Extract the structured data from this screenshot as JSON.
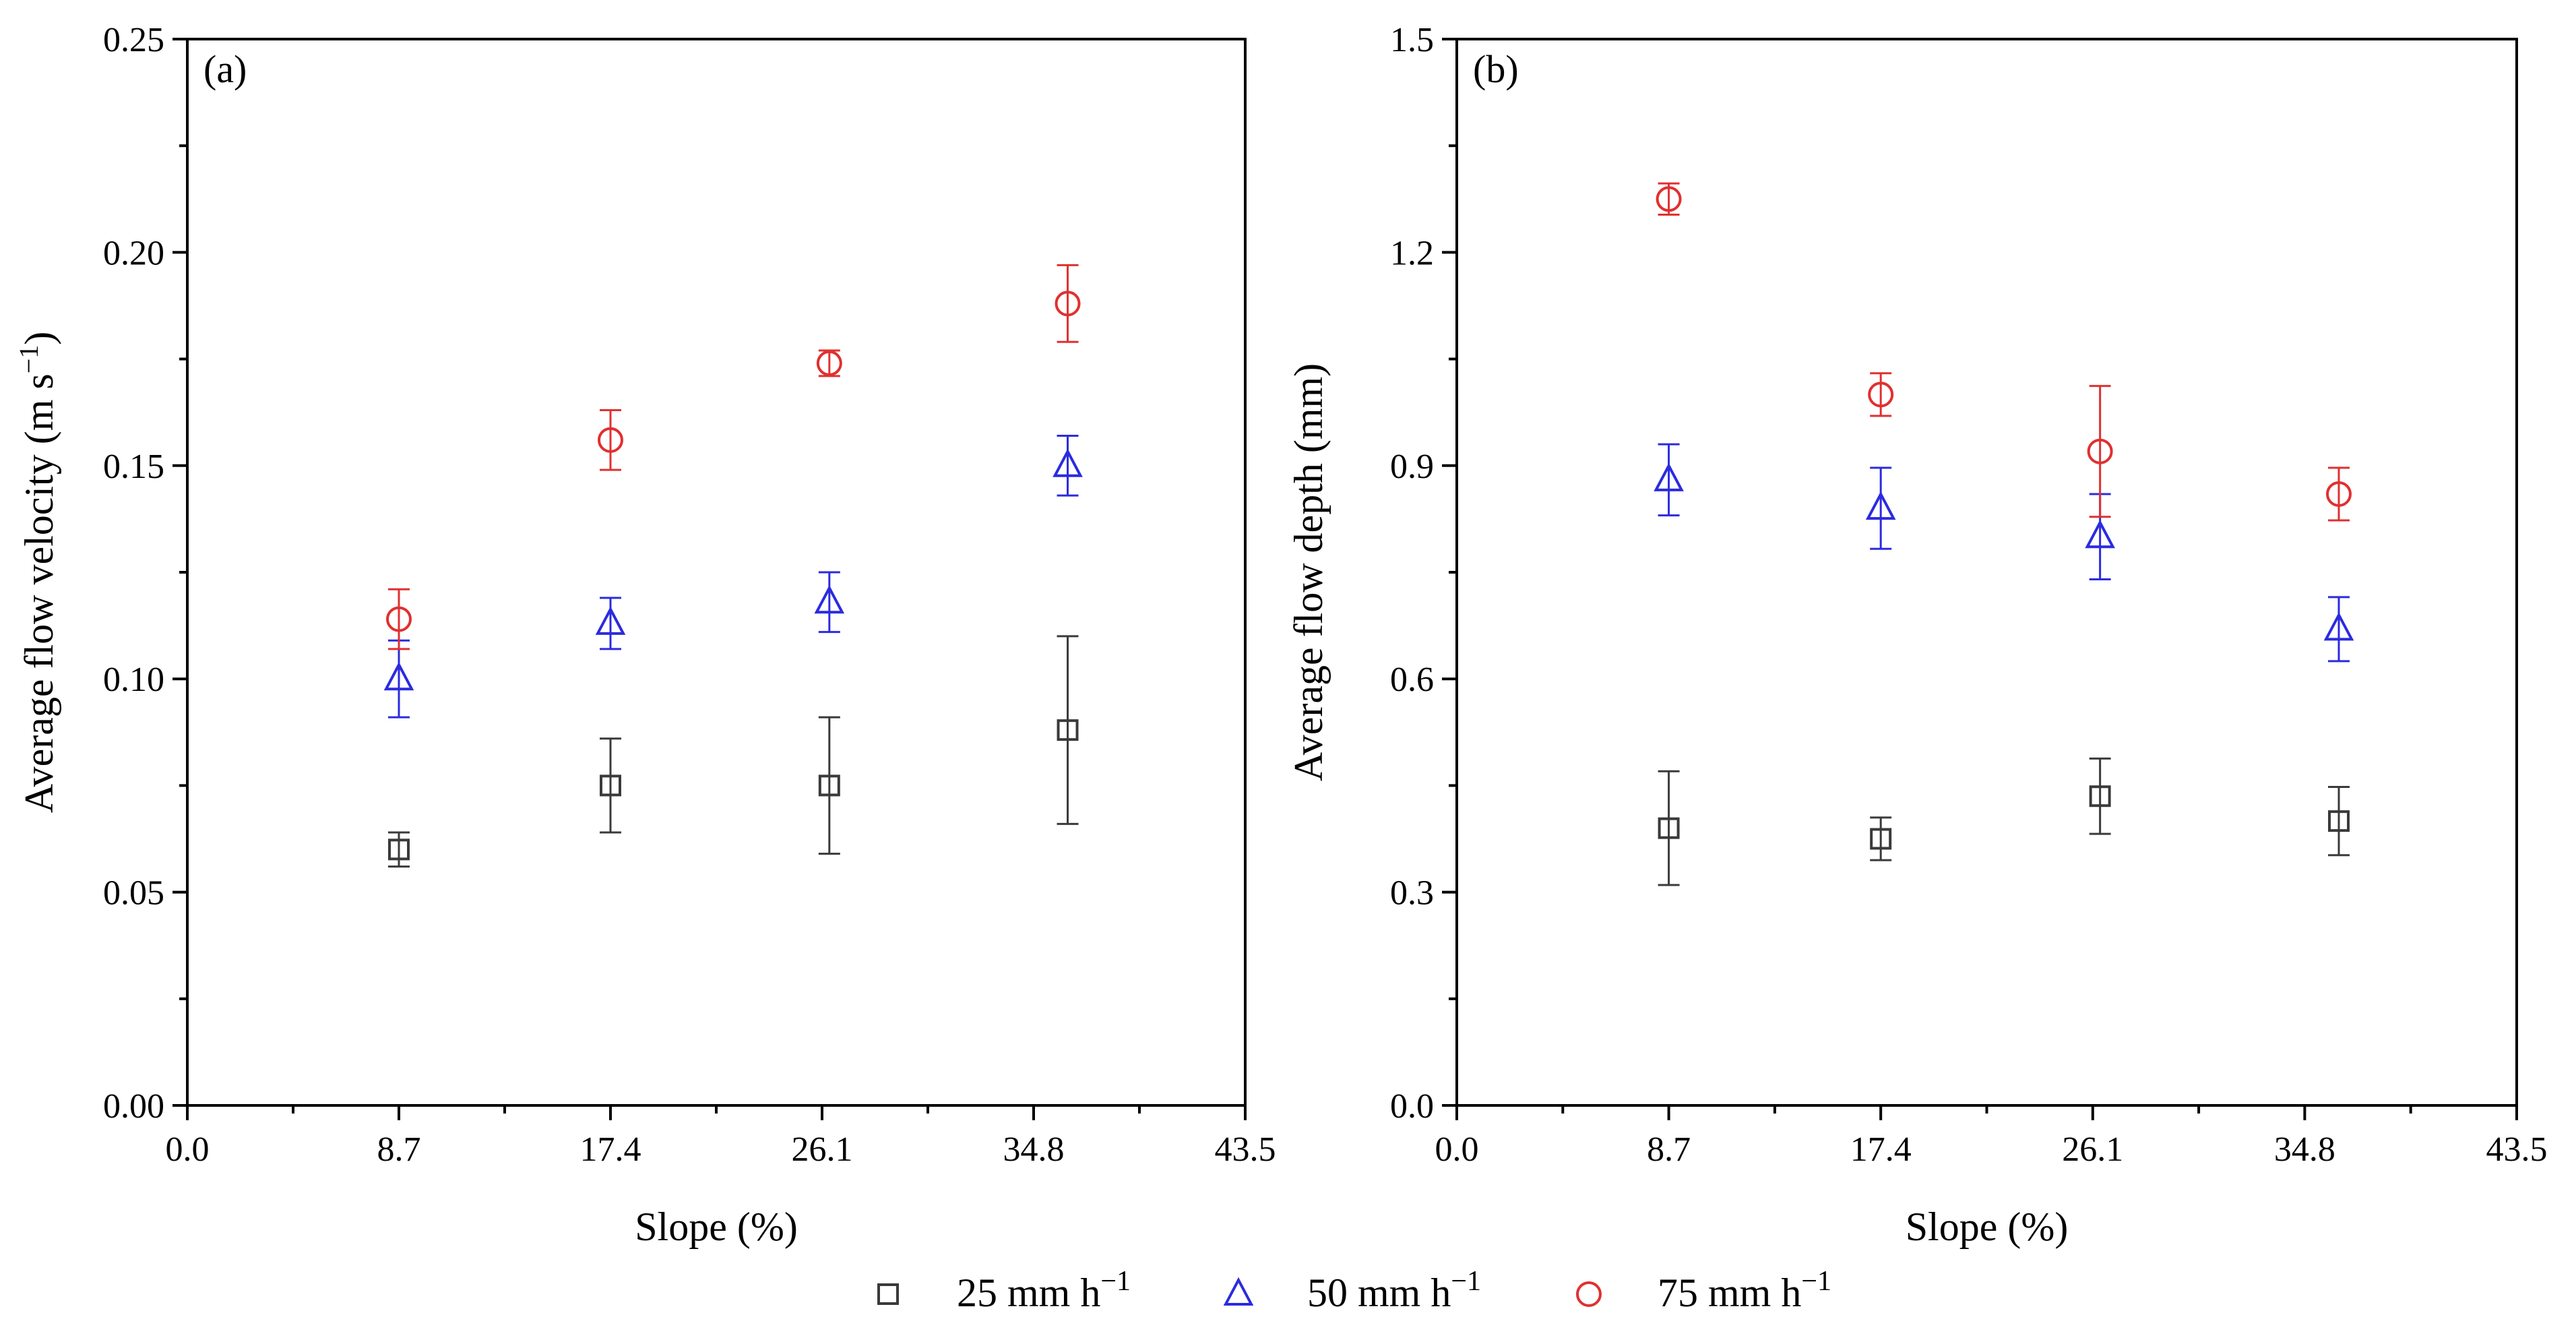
{
  "legend": {
    "items": [
      {
        "label": "25 mm h",
        "sup": "−1",
        "color": "#3a3a3a",
        "marker": "square-icon"
      },
      {
        "label": "50 mm h",
        "sup": "−1",
        "color": "#2b2be0",
        "marker": "triangle-icon"
      },
      {
        "label": "75 mm h",
        "sup": "−1",
        "color": "#e03030",
        "marker": "circle-icon"
      }
    ]
  },
  "chart_data": [
    {
      "type": "scatter",
      "panel_label": "(a)",
      "xlabel": "Slope (%)",
      "ylabel": "Average flow velocity (m s",
      "ylabel_sup": "−1",
      "ylabel_end": ")",
      "xlim": [
        0,
        43.5
      ],
      "ylim": [
        0,
        0.25
      ],
      "xticks": [
        0,
        8.7,
        17.4,
        26.1,
        34.8,
        43.5
      ],
      "xtick_labels": [
        "0.0",
        "8.7",
        "17.4",
        "26.1",
        "34.8",
        "43.5"
      ],
      "yticks": [
        0,
        0.05,
        0.1,
        0.15,
        0.2,
        0.25
      ],
      "ytick_labels": [
        "0.00",
        "0.05",
        "0.10",
        "0.15",
        "0.20",
        "0.25"
      ],
      "series": [
        {
          "name": "25 mm h−1",
          "marker": "square",
          "color": "#3a3a3a",
          "x": [
            8.7,
            17.4,
            26.4,
            36.2
          ],
          "y": [
            0.06,
            0.075,
            0.075,
            0.088
          ],
          "err": [
            0.004,
            0.011,
            0.016,
            0.022
          ]
        },
        {
          "name": "50 mm h−1",
          "marker": "triangle",
          "color": "#2b2be0",
          "x": [
            8.7,
            17.4,
            26.4,
            36.2
          ],
          "y": [
            0.1,
            0.113,
            0.118,
            0.15
          ],
          "err": [
            0.009,
            0.006,
            0.007,
            0.007
          ]
        },
        {
          "name": "75 mm h−1",
          "marker": "circle",
          "color": "#e03030",
          "x": [
            8.7,
            17.4,
            26.4,
            36.2
          ],
          "y": [
            0.114,
            0.156,
            0.174,
            0.188
          ],
          "err": [
            0.007,
            0.007,
            0.003,
            0.009
          ]
        }
      ]
    },
    {
      "type": "scatter",
      "panel_label": "(b)",
      "xlabel": "Slope (%)",
      "ylabel": "Average flow depth (mm)",
      "ylabel_sup": "",
      "ylabel_end": "",
      "xlim": [
        0,
        43.5
      ],
      "ylim": [
        0,
        1.5
      ],
      "xticks": [
        0,
        8.7,
        17.4,
        26.1,
        34.8,
        43.5
      ],
      "xtick_labels": [
        "0.0",
        "8.7",
        "17.4",
        "26.1",
        "34.8",
        "43.5"
      ],
      "yticks": [
        0,
        0.3,
        0.6,
        0.9,
        1.2,
        1.5
      ],
      "ytick_labels": [
        "0.0",
        "0.3",
        "0.6",
        "0.9",
        "1.2",
        "1.5"
      ],
      "series": [
        {
          "name": "25 mm h−1",
          "marker": "square",
          "color": "#3a3a3a",
          "x": [
            8.7,
            17.4,
            26.4,
            36.2
          ],
          "y": [
            0.39,
            0.375,
            0.435,
            0.4
          ],
          "err": [
            0.08,
            0.03,
            0.053,
            0.048
          ]
        },
        {
          "name": "50 mm h−1",
          "marker": "triangle",
          "color": "#2b2be0",
          "x": [
            8.7,
            17.4,
            26.4,
            36.2
          ],
          "y": [
            0.88,
            0.84,
            0.8,
            0.67
          ],
          "err": [
            0.05,
            0.057,
            0.06,
            0.045
          ]
        },
        {
          "name": "75 mm h−1",
          "marker": "circle",
          "color": "#e03030",
          "x": [
            8.7,
            17.4,
            26.4,
            36.2
          ],
          "y": [
            1.275,
            1.0,
            0.92,
            0.86
          ],
          "err": [
            0.022,
            0.03,
            0.092,
            0.037
          ]
        }
      ]
    }
  ]
}
